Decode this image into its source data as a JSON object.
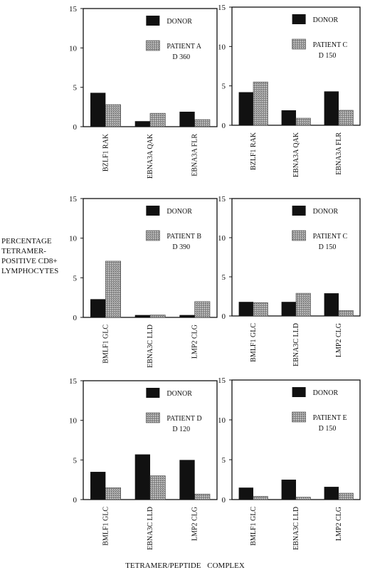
{
  "figure": {
    "ylabel_lines": [
      "PERCENTAGE",
      "TETRAMER-",
      "POSITIVE  CD8+",
      "LYMPHOCYTES"
    ],
    "xlabel": "TETRAMER/PEPTIDE  COMPLEX"
  },
  "chart_data": [
    {
      "type": "bar",
      "categories": [
        "BZLF1 RAK",
        "EBNA3A QAK",
        "EBNA3A FLR"
      ],
      "series": [
        {
          "name": "DONOR",
          "values": [
            4.3,
            0.7,
            1.9
          ]
        },
        {
          "name": "PATIENT  A",
          "values": [
            2.8,
            1.7,
            0.9
          ]
        }
      ],
      "legend_extra": "D 360",
      "ylim": [
        0,
        15
      ],
      "yticks": [
        0,
        5,
        10,
        15
      ],
      "colors": [
        "#111111",
        "#9a9a9a"
      ]
    },
    {
      "type": "bar",
      "categories": [
        "BZLF1 RAK",
        "EBNA3A QAK",
        "EBNA3A FLR"
      ],
      "series": [
        {
          "name": "DONOR",
          "values": [
            4.2,
            1.9,
            4.3
          ]
        },
        {
          "name": "PATIENT  C",
          "values": [
            5.5,
            0.9,
            1.9
          ]
        }
      ],
      "legend_extra": "D 150",
      "ylim": [
        0,
        15
      ],
      "yticks": [
        0,
        5,
        10,
        15
      ],
      "colors": [
        "#111111",
        "#9a9a9a"
      ]
    },
    {
      "type": "bar",
      "categories": [
        "BMLF1 GLC",
        "EBNA3C LLD",
        "LMP2 CLG"
      ],
      "series": [
        {
          "name": "DONOR",
          "values": [
            2.3,
            0.3,
            0.3
          ]
        },
        {
          "name": "PATIENT B",
          "values": [
            7.1,
            0.3,
            2.0
          ]
        }
      ],
      "legend_extra": "D 390",
      "ylim": [
        0,
        15
      ],
      "yticks": [
        0,
        5,
        10,
        15
      ],
      "colors": [
        "#111111",
        "#9a9a9a"
      ]
    },
    {
      "type": "bar",
      "categories": [
        "BMLF1 GLC",
        "EBNA3C LLD",
        "LMP2 CLG"
      ],
      "series": [
        {
          "name": "DONOR",
          "values": [
            1.8,
            1.8,
            2.9
          ]
        },
        {
          "name": "PATIENT C",
          "values": [
            1.7,
            2.9,
            0.7
          ]
        }
      ],
      "legend_extra": "D 150",
      "ylim": [
        0,
        15
      ],
      "yticks": [
        0,
        5,
        10,
        15
      ],
      "colors": [
        "#111111",
        "#9a9a9a"
      ]
    },
    {
      "type": "bar",
      "categories": [
        "BMLF1 GLC",
        "EBNA3C LLD",
        "LMP2 CLG"
      ],
      "series": [
        {
          "name": "DONOR",
          "values": [
            3.5,
            5.7,
            5.0
          ]
        },
        {
          "name": "PATIENT D",
          "values": [
            1.5,
            3.0,
            0.7
          ]
        }
      ],
      "legend_extra": "D 120",
      "ylim": [
        0,
        15
      ],
      "yticks": [
        0,
        5,
        10,
        15
      ],
      "colors": [
        "#111111",
        "#9a9a9a"
      ]
    },
    {
      "type": "bar",
      "categories": [
        "BMLF1 GLC",
        "EBNA3C LLD",
        "LMP2 CLG"
      ],
      "series": [
        {
          "name": "DONOR",
          "values": [
            1.5,
            2.5,
            1.6
          ]
        },
        {
          "name": "PATIENT E",
          "values": [
            0.4,
            0.3,
            0.8
          ]
        }
      ],
      "legend_extra": "D 150",
      "ylim": [
        0,
        15
      ],
      "yticks": [
        0,
        5,
        10,
        15
      ],
      "colors": [
        "#111111",
        "#9a9a9a"
      ]
    }
  ]
}
